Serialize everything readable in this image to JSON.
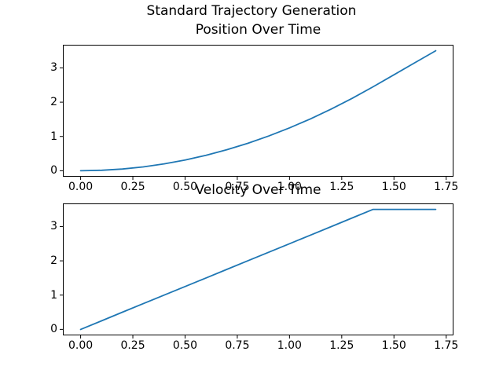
{
  "figure": {
    "suptitle": "Standard Trajectory Generation"
  },
  "colors": {
    "line": "#1f77b4",
    "text": "#000000",
    "spines": "#000000",
    "background": "#ffffff"
  },
  "chart_data": [
    {
      "type": "line",
      "title": "Position Over Time",
      "xlabel": "",
      "ylabel": "",
      "x": [
        0.0,
        0.1,
        0.2,
        0.3,
        0.4,
        0.5,
        0.6,
        0.7,
        0.8,
        0.9,
        1.0,
        1.1,
        1.2,
        1.3,
        1.4,
        1.5,
        1.6,
        1.7
      ],
      "series": [
        {
          "name": "position",
          "color": "#1f77b4",
          "values": [
            0.0,
            0.0125,
            0.05,
            0.1125,
            0.2,
            0.3125,
            0.45,
            0.6125,
            0.8,
            1.0125,
            1.25,
            1.5125,
            1.8,
            2.1125,
            2.45,
            2.8,
            3.15,
            3.5
          ]
        }
      ],
      "xlim": [
        -0.085,
        1.785
      ],
      "ylim": [
        -0.175,
        3.675
      ],
      "xtick_values": [
        0.0,
        0.25,
        0.5,
        0.75,
        1.0,
        1.25,
        1.5,
        1.75
      ],
      "xtick_labels": [
        "0.00",
        "0.25",
        "0.50",
        "0.75",
        "1.00",
        "1.25",
        "1.50",
        "1.75"
      ],
      "ytick_values": [
        0,
        1,
        2,
        3
      ],
      "ytick_labels": [
        "0",
        "1",
        "2",
        "3"
      ],
      "grid": false,
      "legend": "none"
    },
    {
      "type": "line",
      "title": "Velocity Over Time",
      "xlabel": "",
      "ylabel": "",
      "x": [
        0.0,
        0.1,
        0.2,
        0.3,
        0.4,
        0.5,
        0.6,
        0.7,
        0.8,
        0.9,
        1.0,
        1.1,
        1.2,
        1.3,
        1.4,
        1.5,
        1.6,
        1.7
      ],
      "series": [
        {
          "name": "velocity",
          "color": "#1f77b4",
          "values": [
            0.0,
            0.25,
            0.5,
            0.75,
            1.0,
            1.25,
            1.5,
            1.75,
            2.0,
            2.25,
            2.5,
            2.75,
            3.0,
            3.25,
            3.5,
            3.5,
            3.5,
            3.5
          ]
        }
      ],
      "xlim": [
        -0.085,
        1.785
      ],
      "ylim": [
        -0.175,
        3.675
      ],
      "xtick_values": [
        0.0,
        0.25,
        0.5,
        0.75,
        1.0,
        1.25,
        1.5,
        1.75
      ],
      "xtick_labels": [
        "0.00",
        "0.25",
        "0.50",
        "0.75",
        "1.00",
        "1.25",
        "1.50",
        "1.75"
      ],
      "ytick_values": [
        0,
        1,
        2,
        3
      ],
      "ytick_labels": [
        "0",
        "1",
        "2",
        "3"
      ],
      "grid": false,
      "legend": "none"
    }
  ]
}
